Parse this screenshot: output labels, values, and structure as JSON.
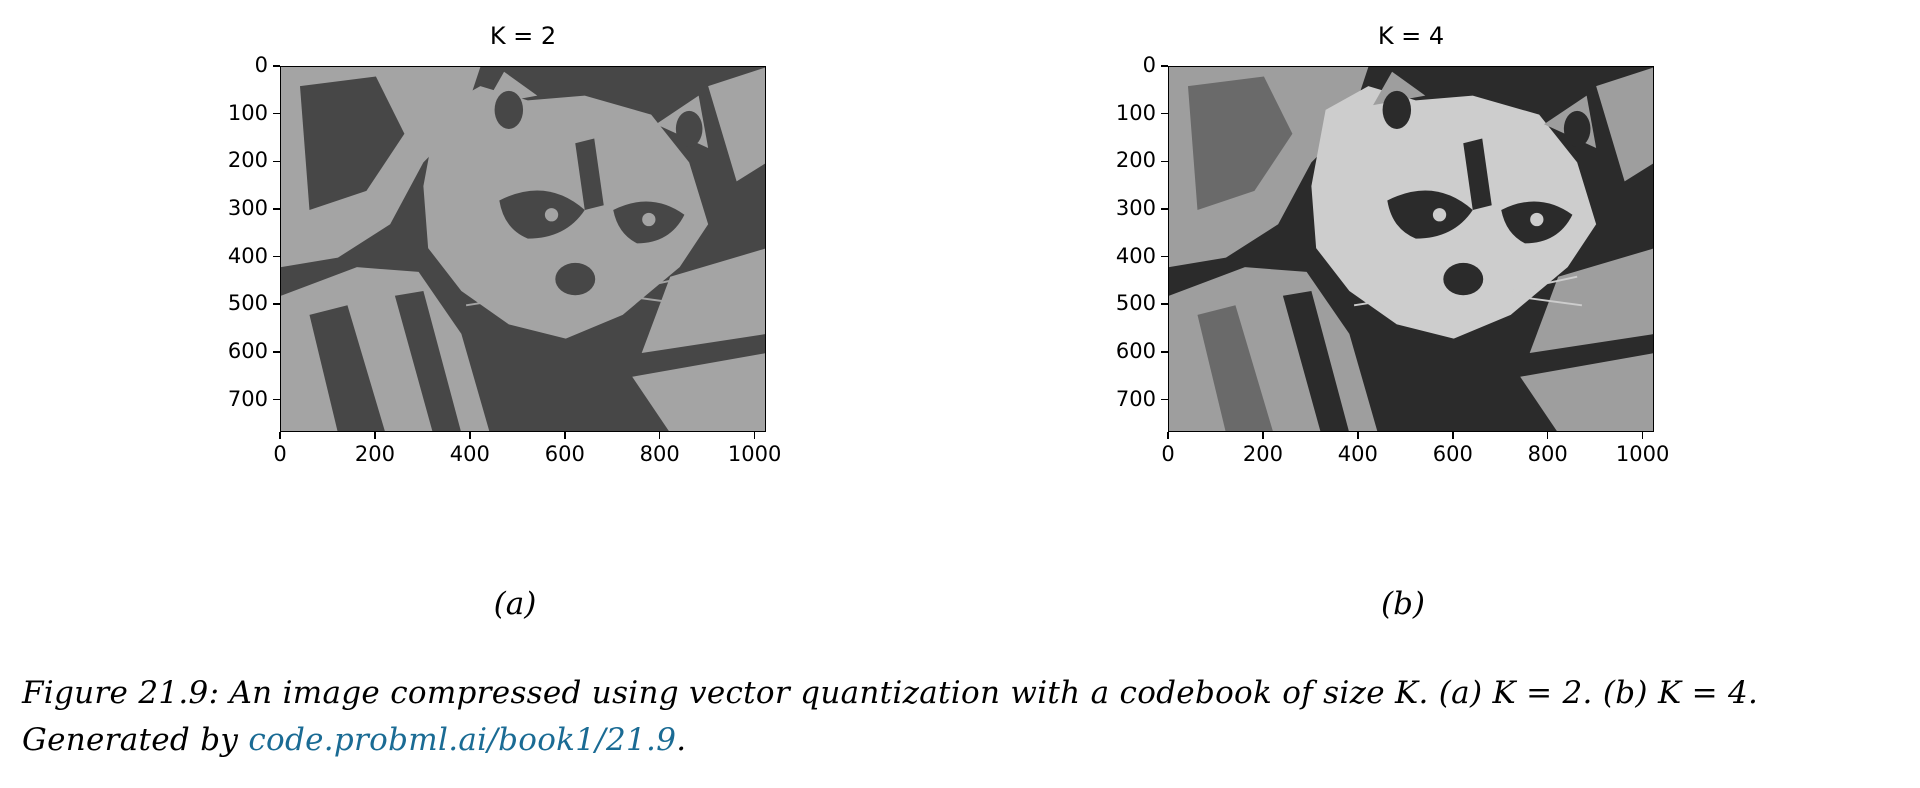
{
  "panels": [
    {
      "title": "K = 2",
      "sub_label": "(a)",
      "codebook_size": 2,
      "palette": [
        "#474747",
        "#a4a4a4"
      ],
      "yticks": [
        "0",
        "100",
        "200",
        "300",
        "400",
        "500",
        "600",
        "700"
      ],
      "xticks": [
        "0",
        "200",
        "400",
        "600",
        "800",
        "1000"
      ]
    },
    {
      "title": "K = 4",
      "sub_label": "(b)",
      "codebook_size": 4,
      "palette": [
        "#2b2b2b",
        "#6a6a6a",
        "#9e9e9e",
        "#cdcdcd"
      ],
      "yticks": [
        "0",
        "100",
        "200",
        "300",
        "400",
        "500",
        "600",
        "700"
      ],
      "xticks": [
        "0",
        "200",
        "400",
        "600",
        "800",
        "1000"
      ]
    }
  ],
  "image": {
    "width": 1024,
    "height": 768,
    "subject": "raccoon photo (vector-quantized)"
  },
  "caption": {
    "text_before": "Figure 21.9: An image compressed using vector quantization with a codebook of size K. (a) K = 2. (b) K = 4. Generated by ",
    "link": "code.probml.ai/book1/21.9",
    "text_after": "."
  }
}
